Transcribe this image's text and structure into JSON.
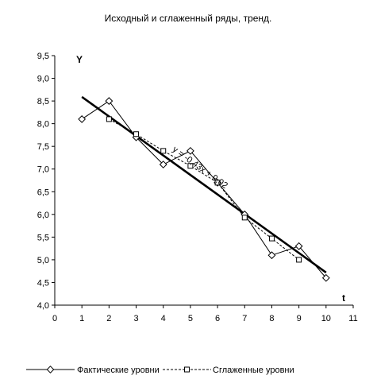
{
  "chart_data": {
    "type": "line",
    "title": "Исходный и сглаженный ряды, тренд.",
    "xlabel": "t",
    "ylabel": "Y",
    "xlim": [
      0,
      11
    ],
    "ylim": [
      4.0,
      9.5
    ],
    "x_ticks": [
      "0",
      "1",
      "2",
      "3",
      "4",
      "5",
      "6",
      "7",
      "8",
      "9",
      "10",
      "11"
    ],
    "y_ticks": [
      "4,0",
      "4,5",
      "5,0",
      "5,5",
      "6,0",
      "6,5",
      "7,0",
      "7,5",
      "8,0",
      "8,5",
      "9,0",
      "9,5"
    ],
    "grid": false,
    "legend_position": "bottom",
    "series": [
      {
        "name": "Фактические уровни",
        "marker": "diamond",
        "line_style": "solid",
        "color": "#000000",
        "x": [
          1,
          2,
          3,
          4,
          5,
          6,
          7,
          8,
          9,
          10
        ],
        "values": [
          8.1,
          8.5,
          7.7,
          7.1,
          7.4,
          6.7,
          6.0,
          5.1,
          5.3,
          4.6
        ]
      },
      {
        "name": "Сглаженные уровни",
        "marker": "square",
        "line_style": "dashed",
        "color": "#000000",
        "x": [
          2,
          3,
          4,
          5,
          6,
          7,
          8,
          9
        ],
        "values": [
          8.1,
          7.77,
          7.4,
          7.07,
          6.7,
          5.93,
          5.47,
          5.0
        ]
      }
    ],
    "trend": {
      "equation": "y = -0,43x + 9,02",
      "slope": -0.43,
      "intercept": 9.02,
      "x_range": [
        1,
        10
      ],
      "color": "#000000"
    }
  }
}
